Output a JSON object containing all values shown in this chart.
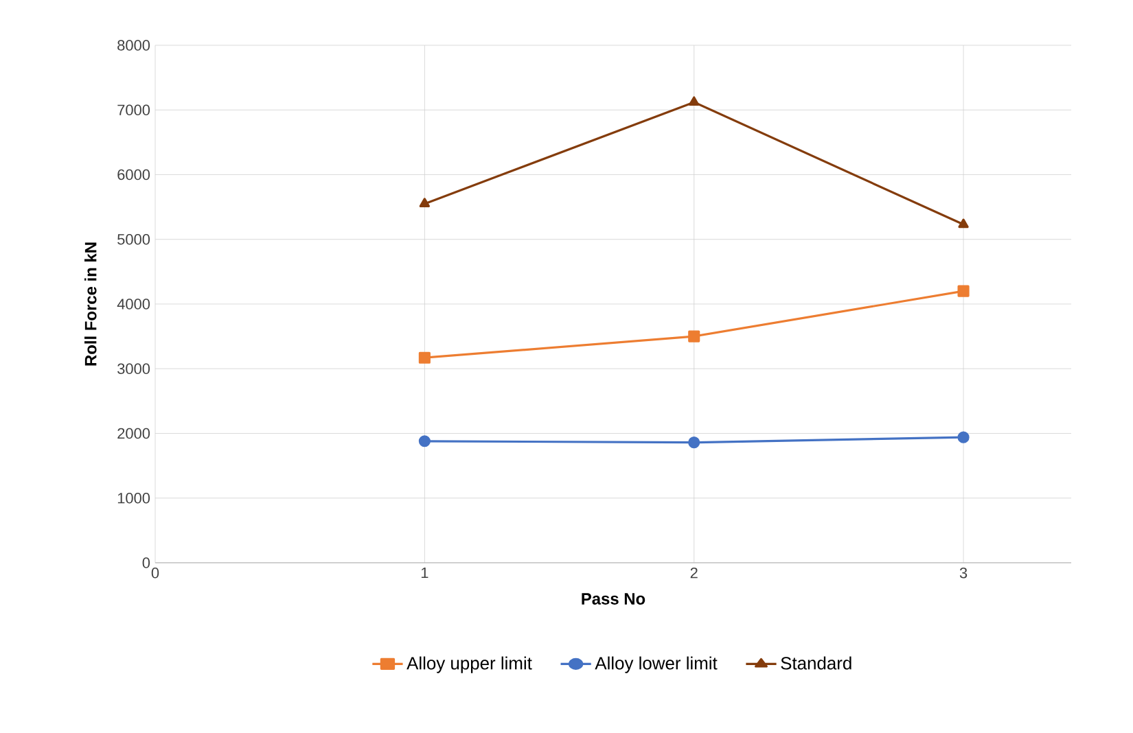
{
  "chart_data": {
    "type": "line",
    "xlabel": "Pass No",
    "ylabel": "Roll Force in kN",
    "x": [
      1,
      2,
      3
    ],
    "series": [
      {
        "name": "Alloy upper limit",
        "color": "#ed7d31",
        "marker": "square",
        "values": [
          3170,
          3500,
          4200
        ]
      },
      {
        "name": "Alloy lower limit",
        "color": "#4472c4",
        "marker": "circle",
        "values": [
          1880,
          1860,
          1940
        ]
      },
      {
        "name": "Standard",
        "color": "#843c0c",
        "marker": "triangle",
        "values": [
          5550,
          7120,
          5230
        ]
      }
    ],
    "xlim": [
      0,
      3.4
    ],
    "ylim": [
      0,
      8000
    ],
    "xticks": [
      0,
      1,
      2,
      3
    ],
    "yticks": [
      0,
      1000,
      2000,
      3000,
      4000,
      5000,
      6000,
      7000,
      8000
    ],
    "grid": true,
    "legend": "bottom"
  }
}
